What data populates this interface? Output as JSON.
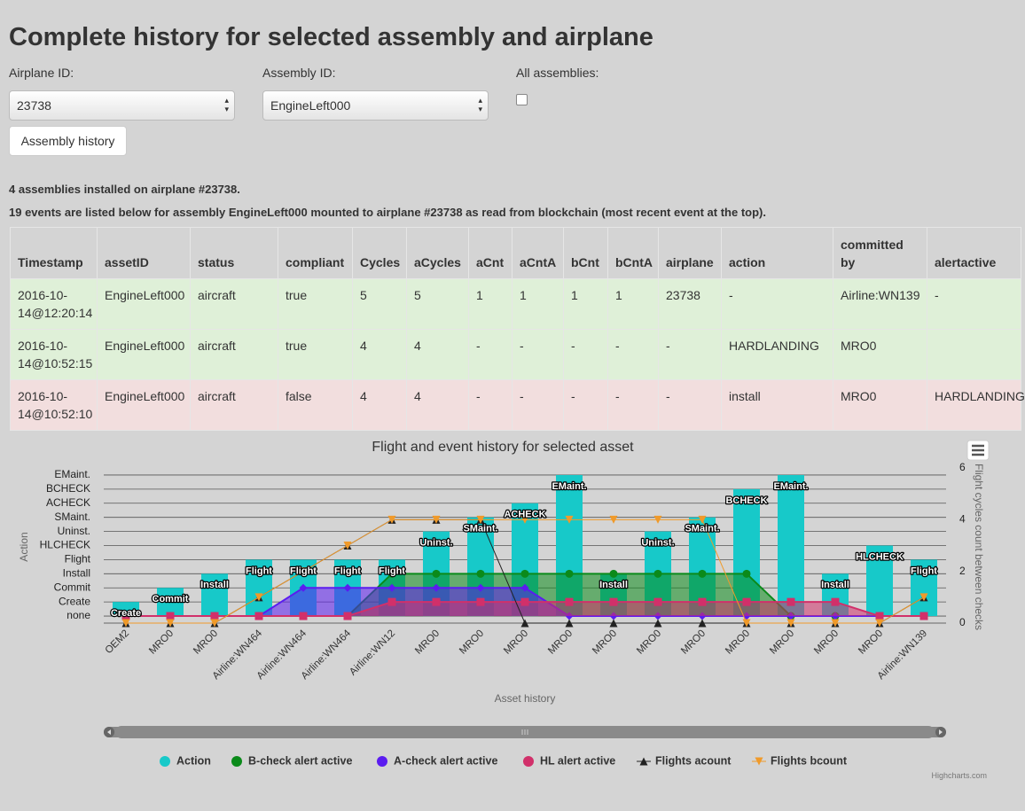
{
  "header": {
    "title": "Complete history for selected assembly and airplane"
  },
  "form": {
    "airplane_label": "Airplane ID:",
    "airplane_value": "23738",
    "assembly_label": "Assembly ID:",
    "assembly_value": "EngineLeft000",
    "all_label": "All assemblies:",
    "button": "Assembly history"
  },
  "info": {
    "line1": [
      "4 assemblies",
      " installed on airplane ",
      "#23738."
    ],
    "line2": [
      "19 events",
      " are listed below for ",
      "assembly EngineLeft000",
      " mounted to ",
      "airplane #23738",
      " as read from blockchain (most recent event at the top)."
    ]
  },
  "table": {
    "columns": [
      "Timestamp",
      "assetID",
      "status",
      "compliant",
      "Cycles",
      "aCycles",
      "aCnt",
      "aCntA",
      "bCnt",
      "bCntA",
      "airplane",
      "action",
      "committed by",
      "alertactive"
    ],
    "rows": [
      [
        "2016-10-14@12:20:14",
        "EngineLeft000",
        "aircraft",
        "true",
        "5",
        "5",
        "1",
        "1",
        "1",
        "1",
        "23738",
        "-",
        "Airline:WN139",
        "-"
      ],
      [
        "2016-10-14@10:52:15",
        "EngineLeft000",
        "aircraft",
        "true",
        "4",
        "4",
        "-",
        "-",
        "-",
        "-",
        "-",
        "HARDLANDING",
        "MRO0"
      ],
      [
        "2016-10-14@10:52:10",
        "EngineLeft000",
        "aircraft",
        "false",
        "4",
        "4",
        "-",
        "-",
        "-",
        "-",
        "-",
        "install",
        "MRO0",
        "HARDLANDING"
      ]
    ]
  },
  "chart_data": {
    "type": "bar",
    "title": "Flight and event history for selected asset",
    "x_label": "Asset history",
    "y_label": "Action",
    "y2_label": "Flight cycles count between checks",
    "categories": [
      "OEM2",
      "MRO0",
      "MRO0",
      "Airline:WN464",
      "Airline:WN464",
      "Airline:WN464",
      "Airline:WN12",
      "MRO0",
      "MRO0",
      "MRO0",
      "MRO0",
      "MRO0",
      "MRO0",
      "MRO0",
      "MRO0",
      "MRO0",
      "MRO0",
      "MRO0",
      "Airline:WN139"
    ],
    "ylim": [
      -0.5,
      10.5
    ],
    "yticks": [
      {
        "value": 0,
        "label": "none"
      },
      {
        "value": 1,
        "label": "Create"
      },
      {
        "value": 2,
        "label": "Commit"
      },
      {
        "value": 3,
        "label": "Install"
      },
      {
        "value": 4,
        "label": "Flight"
      },
      {
        "value": 5,
        "label": "HLCHECK"
      },
      {
        "value": 6,
        "label": "Uninst."
      },
      {
        "value": 7,
        "label": "SMaint."
      },
      {
        "value": 8,
        "label": "ACHECK"
      },
      {
        "value": 9,
        "label": "BCHECK"
      },
      {
        "value": 10,
        "label": "EMaint."
      }
    ],
    "y2lim": [
      0,
      6
    ],
    "y2ticks": [
      0,
      2,
      4,
      6
    ],
    "grid": true,
    "legend": "bottom",
    "series": [
      {
        "name": "Action",
        "type": "bar",
        "color": "#17c9c9",
        "values": [
          1,
          2,
          3,
          4,
          4,
          4,
          4,
          6,
          7,
          8,
          10,
          3,
          6,
          7,
          9,
          10,
          3,
          5,
          4
        ],
        "value_labels": [
          "Create",
          "Commit",
          "Install",
          "Flight",
          "Flight",
          "Flight",
          "Flight",
          "Uninst.",
          "SMaint.",
          "ACHECK",
          "EMaint.",
          "Install",
          "Uninst.",
          "SMaint.",
          "BCHECK",
          "EMaint.",
          "Install",
          "HLCHECK",
          "Flight"
        ]
      },
      {
        "name": "B-check alert active",
        "type": "area",
        "marker": "circle",
        "color": "#0b8a1a",
        "values": [
          0,
          0,
          0,
          0,
          0,
          0,
          3,
          3,
          3,
          3,
          3,
          3,
          3,
          3,
          3,
          0,
          0,
          0,
          0
        ]
      },
      {
        "name": "A-check alert active",
        "type": "area",
        "marker": "diamond",
        "color": "#5b1cf0",
        "values": [
          0,
          0,
          0,
          0,
          2,
          2,
          2,
          2,
          2,
          2,
          0,
          0,
          0,
          0,
          0,
          0,
          0,
          0,
          0
        ]
      },
      {
        "name": "HL alert active",
        "type": "area",
        "marker": "square",
        "color": "#d1306a",
        "values": [
          0,
          0,
          0,
          0,
          0,
          0,
          1,
          1,
          1,
          1,
          1,
          1,
          1,
          1,
          1,
          1,
          1,
          0,
          0
        ]
      },
      {
        "name": "Flights acount",
        "type": "line",
        "marker": "triangle",
        "axis": "y2",
        "color": "#222222",
        "values": [
          0,
          0,
          0,
          1,
          2,
          3,
          4,
          4,
          4,
          0,
          0,
          0,
          0,
          0,
          0,
          0,
          0,
          0,
          1
        ]
      },
      {
        "name": "Flights bcount",
        "type": "line",
        "marker": "triangle-down",
        "axis": "y2",
        "color": "#f09a2a",
        "values": [
          0,
          0,
          0,
          1,
          2,
          3,
          4,
          4,
          4,
          4,
          4,
          4,
          4,
          4,
          0,
          0,
          0,
          0,
          1
        ]
      }
    ],
    "credits": "Highcharts.com"
  }
}
